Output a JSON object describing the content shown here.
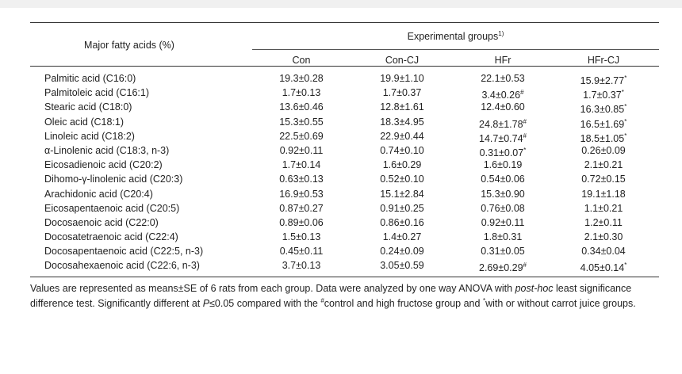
{
  "table": {
    "header_major": "Major fatty acids (%)",
    "header_groups": "Experimental groups",
    "header_groups_footnote": "1)",
    "columns": [
      "Con",
      "Con-CJ",
      "HFr",
      "HFr-CJ"
    ],
    "rows": [
      {
        "name": "Palmitic acid (C16:0)",
        "values": [
          "19.3±0.28",
          "19.9±1.10",
          "22.1±0.53",
          "15.9±2.77"
        ],
        "marks": [
          "",
          "",
          "",
          "*"
        ]
      },
      {
        "name": "Palmitoleic acid (C16:1)",
        "values": [
          "1.7±0.13",
          "1.7±0.37",
          "3.4±0.26",
          "1.7±0.37"
        ],
        "marks": [
          "",
          "",
          "#",
          "*"
        ]
      },
      {
        "name": "Stearic acid (C18:0)",
        "values": [
          "13.6±0.46",
          "12.8±1.61",
          "12.4±0.60",
          "16.3±0.85"
        ],
        "marks": [
          "",
          "",
          "",
          "*"
        ]
      },
      {
        "name": "Oleic acid (C18:1)",
        "values": [
          "15.3±0.55",
          "18.3±4.95",
          "24.8±1.78",
          "16.5±1.69"
        ],
        "marks": [
          "",
          "",
          "#",
          "*"
        ]
      },
      {
        "name": "Linoleic acid (C18:2)",
        "values": [
          "22.5±0.69",
          "22.9±0.44",
          "14.7±0.74",
          "18.5±1.05"
        ],
        "marks": [
          "",
          "",
          "#",
          "*"
        ]
      },
      {
        "name": "α-Linolenic acid (C18:3, n-3)",
        "values": [
          "0.92±0.11",
          "0.74±0.10",
          "0.31±0.07",
          "0.26±0.09"
        ],
        "marks": [
          "",
          "",
          "*",
          ""
        ]
      },
      {
        "name": "Eicosadienoic acid (C20:2)",
        "values": [
          "1.7±0.14",
          "1.6±0.29",
          "1.6±0.19",
          "2.1±0.21"
        ],
        "marks": [
          "",
          "",
          "",
          ""
        ]
      },
      {
        "name": "Dihomo-γ-linolenic acid (C20:3)",
        "values": [
          "0.63±0.13",
          "0.52±0.10",
          "0.54±0.06",
          "0.72±0.15"
        ],
        "marks": [
          "",
          "",
          "",
          ""
        ]
      },
      {
        "name": "Arachidonic acid (C20:4)",
        "values": [
          "16.9±0.53",
          "15.1±2.84",
          "15.3±0.90",
          "19.1±1.18"
        ],
        "marks": [
          "",
          "",
          "",
          ""
        ]
      },
      {
        "name": "Eicosapentaenoic acid (C20:5)",
        "values": [
          "0.87±0.27",
          "0.91±0.25",
          "0.76±0.08",
          "1.1±0.21"
        ],
        "marks": [
          "",
          "",
          "",
          ""
        ]
      },
      {
        "name": "Docosaenoic acid (C22:0)",
        "values": [
          "0.89±0.06",
          "0.86±0.16",
          "0.92±0.11",
          "1.2±0.11"
        ],
        "marks": [
          "",
          "",
          "",
          ""
        ]
      },
      {
        "name": "Docosatetraenoic acid (C22:4)",
        "values": [
          "1.5±0.13",
          "1.4±0.27",
          "1.8±0.31",
          "2.1±0.30"
        ],
        "marks": [
          "",
          "",
          "",
          ""
        ]
      },
      {
        "name": "Docosapentaenoic acid (C22:5, n-3)",
        "values": [
          "0.45±0.11",
          "0.24±0.09",
          "0.31±0.05",
          "0.34±0.04"
        ],
        "marks": [
          "",
          "",
          "",
          ""
        ]
      },
      {
        "name": "Docosahexaenoic acid (C22:6, n-3)",
        "values": [
          "3.7±0.13",
          "3.05±0.59",
          "2.69±0.29",
          "4.05±0.14"
        ],
        "marks": [
          "",
          "",
          "#",
          "*"
        ]
      }
    ]
  },
  "note": {
    "part1": "Values are represented as means±SE of 6 rats from each group. Data were analyzed by one way ANOVA with ",
    "italic1": "post-hoc",
    "part2": " least significance difference test. Significantly different at ",
    "italic2": "P",
    "part3": "≤0.05 compared with the ",
    "mark1": "#",
    "part4": "control and high fructose group and ",
    "mark2": "*",
    "part5": "with or without carrot juice groups."
  }
}
